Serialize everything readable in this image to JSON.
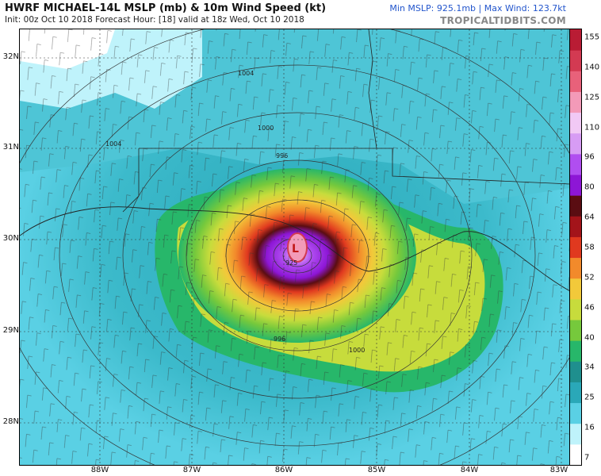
{
  "header": {
    "title": "HWRF MICHAEL-14L MSLP (mb) & 10m Wind Speed (kt)",
    "subtitle": "Init: 00z Oct 10 2018   Forecast Hour: [18]   valid at 18z Wed, Oct 10 2018",
    "stats": "Min MSLP: 925.1mb | Max Wind: 123.7kt",
    "brand": "TROPICALTIDBITS.COM"
  },
  "axes": {
    "latitudes": [
      "32N",
      "31N",
      "30N",
      "29N",
      "28N"
    ],
    "longitudes": [
      "88W",
      "87W",
      "86W",
      "85W",
      "84W",
      "83W"
    ]
  },
  "isobars": [
    "1004",
    "1004",
    "1000",
    "996",
    "996",
    "1000"
  ],
  "storm": {
    "center_symbol": "L",
    "center_pressure": "925",
    "min_mslp_mb": 925.1,
    "max_wind_kt": 123.7
  },
  "colorbar": {
    "ticks": [
      "155",
      "140",
      "125",
      "110",
      "96",
      "80",
      "64",
      "58",
      "52",
      "46",
      "40",
      "34",
      "25",
      "16",
      "7"
    ],
    "colors": [
      "#ffffff",
      "#bff3fb",
      "#5ad0e4",
      "#2aa8b8",
      "#1f8f8e",
      "#27b76a",
      "#76c93c",
      "#c7dc3c",
      "#f2c93a",
      "#f28a2b",
      "#e0391f",
      "#a3141a",
      "#5a0d12",
      "#8d16d6",
      "#b04ef0",
      "#d79cf4",
      "#f1c9f5",
      "#f39ab8",
      "#e8617a",
      "#d33a52",
      "#b91c34"
    ]
  }
}
